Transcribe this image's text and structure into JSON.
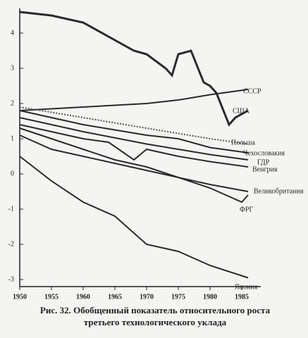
{
  "chart_data": {
    "type": "line",
    "title": "Рис. 32. Обобщенный показатель относительного роста третьего технологического уклада",
    "xlim": [
      1950,
      1988
    ],
    "xticks": [
      1950,
      1955,
      1960,
      1965,
      1970,
      1975,
      1980,
      1985
    ],
    "ylim": [
      -3.2,
      4.7
    ],
    "yticks": [
      -3,
      -2,
      -1,
      0,
      1,
      2,
      3,
      4
    ],
    "series": [
      {
        "name": "США",
        "color": "#2a2a2a",
        "x": [
          1950,
          1955,
          1960,
          1965,
          1968,
          1970,
          1973,
          1974,
          1975,
          1977,
          1979,
          1980,
          1981,
          1983,
          1984,
          1986
        ],
        "values": [
          4.6,
          4.5,
          4.3,
          3.8,
          3.5,
          3.4,
          3.0,
          2.8,
          3.4,
          3.5,
          2.6,
          2.5,
          2.3,
          1.4,
          1.6,
          1.8
        ]
      },
      {
        "name": "СССР",
        "color": "#2a2a2a",
        "x": [
          1950,
          1955,
          1960,
          1965,
          1970,
          1975,
          1980,
          1986
        ],
        "values": [
          1.8,
          1.85,
          1.9,
          1.95,
          2.0,
          2.1,
          2.25,
          2.4
        ]
      },
      {
        "name": "Польша",
        "color": "#555555",
        "dashed": true,
        "x": [
          1950,
          1960,
          1970,
          1980,
          1986
        ],
        "values": [
          1.9,
          1.6,
          1.3,
          1.0,
          0.85
        ]
      },
      {
        "name": "Чехословакия",
        "color": "#2a2a2a",
        "x": [
          1950,
          1960,
          1965,
          1970,
          1975,
          1980,
          1986
        ],
        "values": [
          1.8,
          1.4,
          1.25,
          1.1,
          1.0,
          0.75,
          0.6
        ]
      },
      {
        "name": "ГДР",
        "color": "#2a2a2a",
        "x": [
          1950,
          1960,
          1970,
          1980,
          1986
        ],
        "values": [
          1.6,
          1.2,
          0.85,
          0.55,
          0.4
        ]
      },
      {
        "name": "Венгрия",
        "color": "#2a2a2a",
        "x": [
          1950,
          1960,
          1964,
          1968,
          1970,
          1975,
          1980,
          1986
        ],
        "values": [
          1.4,
          1.0,
          0.9,
          0.4,
          0.7,
          0.5,
          0.35,
          0.2
        ]
      },
      {
        "name": "Великобритания",
        "color": "#2a2a2a",
        "x": [
          1950,
          1955,
          1960,
          1965,
          1970,
          1975,
          1980,
          1986
        ],
        "values": [
          1.3,
          1.0,
          0.7,
          0.4,
          0.2,
          -0.1,
          -0.3,
          -0.5
        ]
      },
      {
        "name": "ФРГ",
        "color": "#2a2a2a",
        "x": [
          1950,
          1955,
          1960,
          1965,
          1970,
          1975,
          1980,
          1985,
          1986
        ],
        "values": [
          1.1,
          0.7,
          0.5,
          0.3,
          0.1,
          -0.1,
          -0.4,
          -0.8,
          -0.6
        ]
      },
      {
        "name": "Япония",
        "color": "#2a2a2a",
        "x": [
          1950,
          1955,
          1960,
          1965,
          1970,
          1975,
          1980,
          1986
        ],
        "values": [
          0.5,
          -0.2,
          -0.8,
          -1.2,
          -2.0,
          -2.2,
          -2.6,
          -2.95
        ]
      }
    ]
  }
}
